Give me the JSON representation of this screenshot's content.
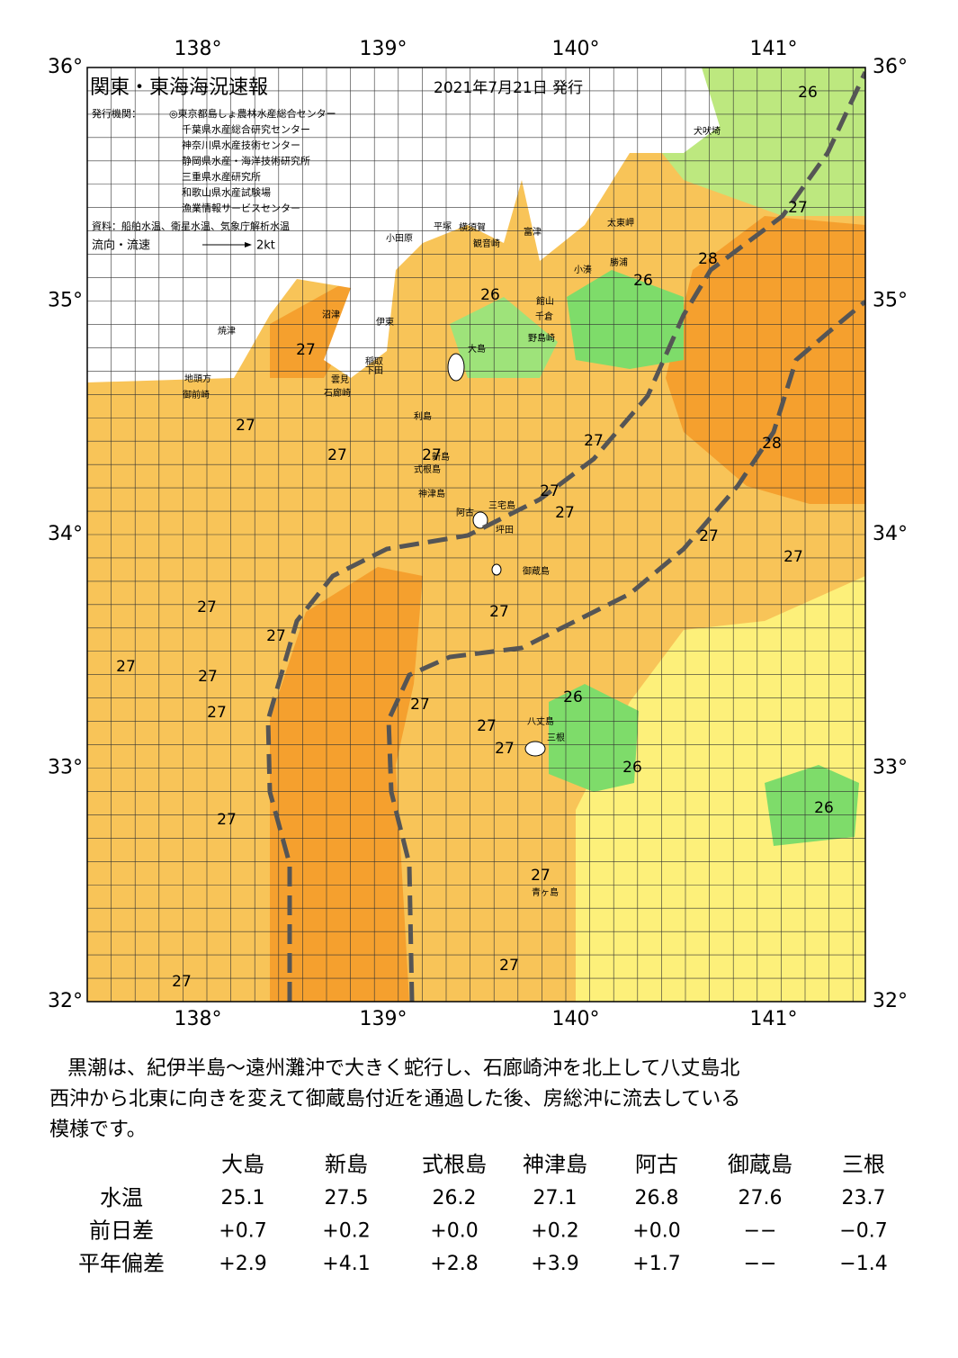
{
  "header": {
    "title": "関東・東海海況速報",
    "date": "2021年7月21日 発行",
    "issuer_label": "発行機関：",
    "issuers": [
      "◎東京都島しょ農林水産総合センター",
      "千葉県水産総合研究センター",
      "神奈川県水産技術センター",
      "静岡県水産・海洋技術研究所",
      "三重県水産研究所",
      "和歌山県水産試験場",
      "漁業情報サービスセンター"
    ],
    "source": "資料：船舶水温、衛星水温、気象庁解析水温",
    "legend_label": "流向・流速",
    "legend_speed": "2kt"
  },
  "map": {
    "lon_labels": [
      "138°",
      "139°",
      "140°",
      "141°"
    ],
    "lat_labels": [
      "36°",
      "35°",
      "34°",
      "33°",
      "32°"
    ],
    "places": [
      "犬吠埼",
      "太東岬",
      "勝浦",
      "小湊",
      "館山",
      "千倉",
      "野島崎",
      "富津",
      "横須賀",
      "観音崎",
      "平塚",
      "小田原",
      "沼津",
      "伊東",
      "稲取",
      "下田",
      "雲見",
      "石廊崎",
      "焼津",
      "地頭方",
      "御前崎",
      "大島",
      "利島",
      "新島",
      "式根島",
      "神津島",
      "三宅島",
      "阿古",
      "坪田",
      "御蔵島",
      "八丈島",
      "三根",
      "青ヶ島"
    ],
    "temp_labels": [
      26,
      27,
      28,
      26,
      26,
      27,
      27,
      27,
      27,
      27,
      28,
      27,
      27,
      27,
      27,
      27,
      27,
      27,
      27,
      27,
      27,
      27,
      26,
      27,
      27,
      26,
      26,
      27,
      27,
      27,
      27
    ]
  },
  "summary": [
    "黒潮は、紀伊半島～遠州灘沖で大きく蛇行し、石廊崎沖を北上して八丈島北",
    "西沖から北東に向きを変えて御蔵島付近を通過した後、房総沖に流去している",
    "模様です。"
  ],
  "table": {
    "columns": [
      "大島",
      "新島",
      "式根島",
      "神津島",
      "阿古",
      "御蔵島",
      "三根"
    ],
    "rows": [
      {
        "label": "水温",
        "cells": [
          "25.1",
          "27.5",
          "26.2",
          "27.1",
          "26.8",
          "27.6",
          "23.7"
        ]
      },
      {
        "label": "前日差",
        "cells": [
          "+0.7",
          "+0.2",
          "+0.0",
          "+0.2",
          "+0.0",
          "−−",
          "−0.7"
        ]
      },
      {
        "label": "平年偏差",
        "cells": [
          "+2.9",
          "+4.1",
          "+2.8",
          "+3.9",
          "+1.7",
          "−−",
          "−1.4"
        ]
      }
    ]
  }
}
